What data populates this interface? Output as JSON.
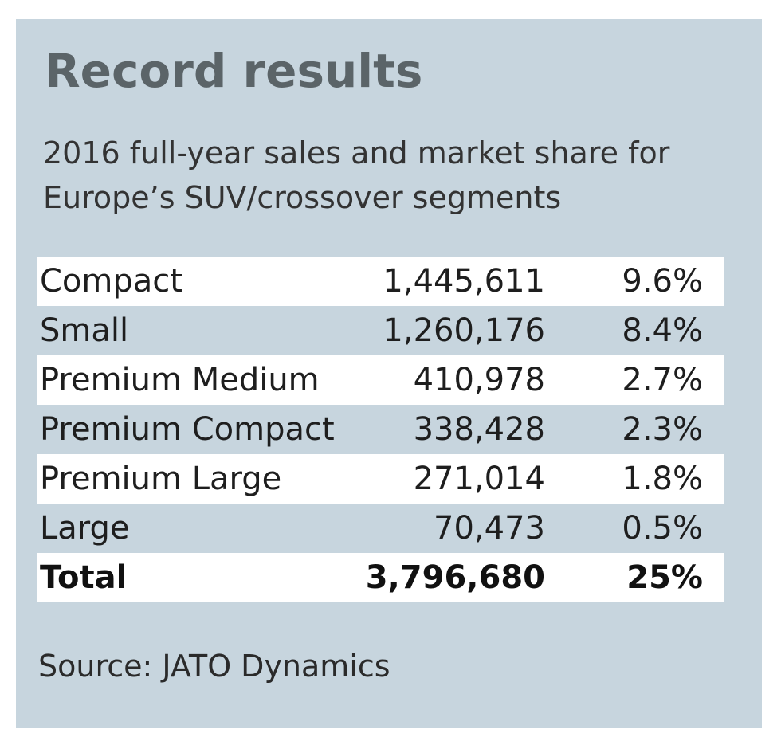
{
  "chart_data": {
    "type": "table",
    "title": "Record results",
    "subtitle": "2016 full-year sales and market share for Europe’s SUV/crossover segments",
    "rows": [
      {
        "segment": "Compact",
        "sales": "1,445,611",
        "share": "9.6%"
      },
      {
        "segment": "Small",
        "sales": "1,260,176",
        "share": "8.4%"
      },
      {
        "segment": "Premium Medium",
        "sales": "410,978",
        "share": "2.7%"
      },
      {
        "segment": "Premium Compact",
        "sales": "338,428",
        "share": "2.3%"
      },
      {
        "segment": "Premium Large",
        "sales": "271,014",
        "share": "1.8%"
      },
      {
        "segment": "Large",
        "sales": "70,473",
        "share": "0.5%"
      }
    ],
    "total": {
      "segment": "Total",
      "sales": "3,796,680",
      "share": "25%"
    },
    "source": "Source: JATO Dynamics"
  },
  "colors": {
    "panel_background": "#c7d5de",
    "row_highlight": "#ffffff",
    "title_text": "#5b6468",
    "body_text": "#1e1e1e"
  }
}
